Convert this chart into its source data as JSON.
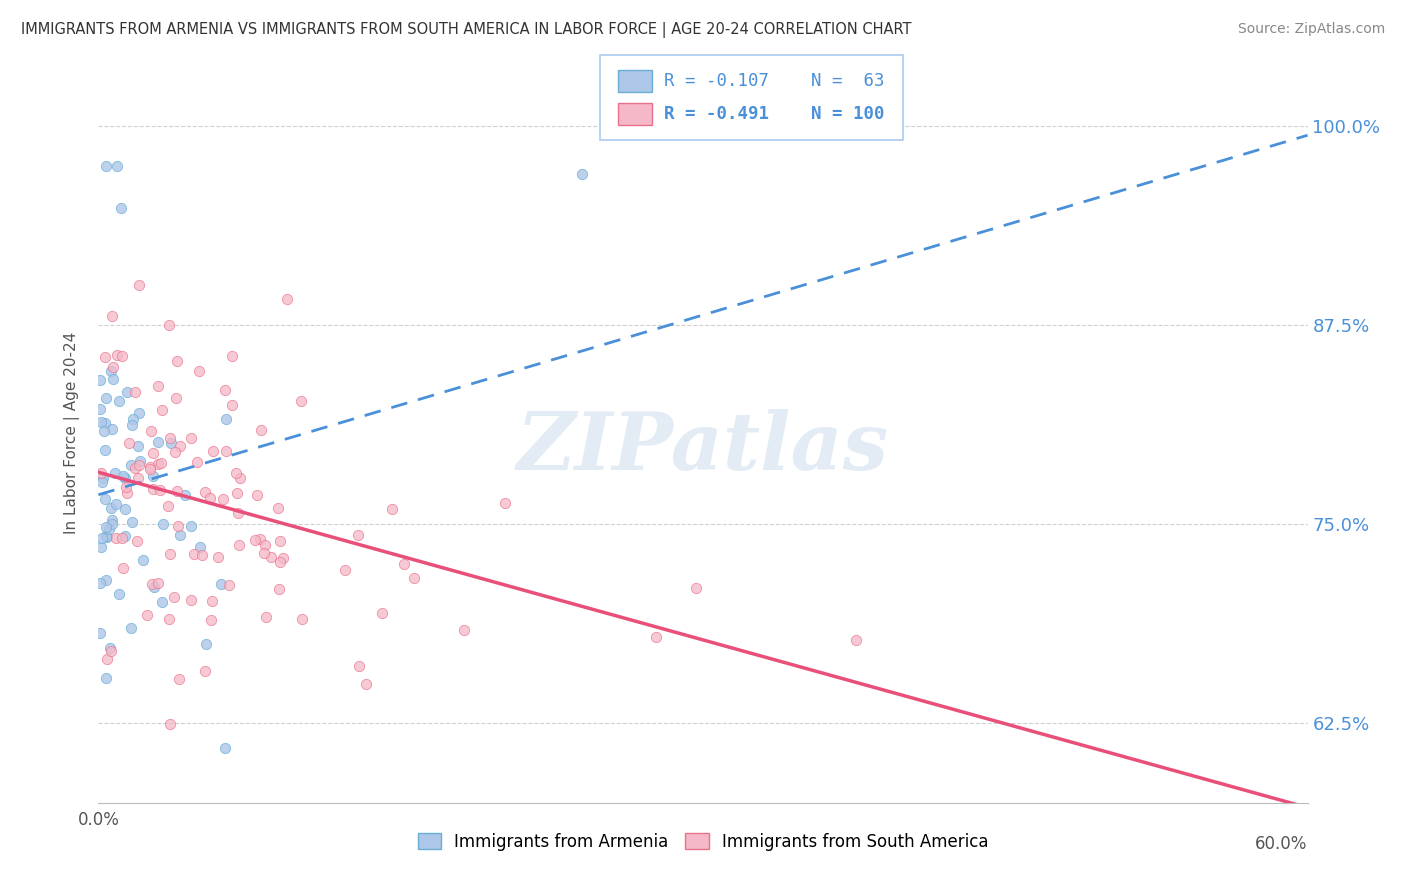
{
  "title": "IMMIGRANTS FROM ARMENIA VS IMMIGRANTS FROM SOUTH AMERICA IN LABOR FORCE | AGE 20-24 CORRELATION CHART",
  "source": "Source: ZipAtlas.com",
  "ylabel": "In Labor Force | Age 20-24",
  "legend_label1": "Immigrants from Armenia",
  "legend_label2": "Immigrants from South America",
  "R1": -0.107,
  "N1": 63,
  "R2": -0.491,
  "N2": 100,
  "color1": "#aec6e8",
  "color2": "#f5b8c8",
  "edge_color1": "#6aaed6",
  "edge_color2": "#e8728a",
  "line_color1": "#4a90d9",
  "line_color2": "#e8507a",
  "xlim": [
    0.0,
    0.6
  ],
  "ylim": [
    0.575,
    1.04
  ],
  "yticks": [
    0.625,
    0.75,
    0.875,
    1.0
  ],
  "ytick_labels": [
    "62.5%",
    "75.0%",
    "87.5%",
    "100.0%"
  ],
  "xticks_left": [
    0.0
  ],
  "xtick_labels_left": [
    "0.0%"
  ],
  "xtick_right_val": 0.6,
  "xtick_right_label": "60.0%",
  "watermark": "ZIPatlas",
  "background_color": "#ffffff",
  "grid_color": "#d0d0d0",
  "title_color": "#333333",
  "source_color": "#888888",
  "tick_label_color": "#4a90d9",
  "seed1": 42,
  "seed2": 123
}
